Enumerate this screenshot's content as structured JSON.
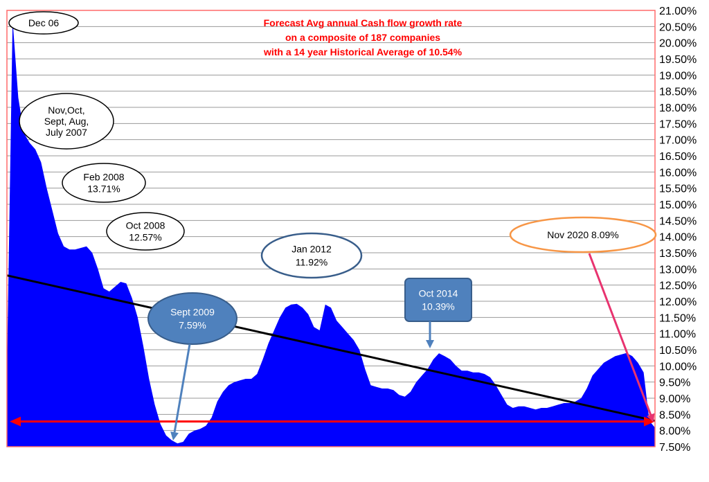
{
  "chart_data": {
    "type": "area",
    "title_lines": [
      "Forecast Avg annual Cash flow growth rate",
      "on a composite of 187 companies",
      "with a 14 year Historical Average of 10.54%"
    ],
    "ylim": [
      7.5,
      21.0
    ],
    "y_ticks": [
      "21.00%",
      "20.50%",
      "20.00%",
      "19.50%",
      "19.00%",
      "18.50%",
      "18.00%",
      "17.50%",
      "17.00%",
      "16.50%",
      "16.00%",
      "15.50%",
      "15.00%",
      "14.50%",
      "14.00%",
      "13.50%",
      "13.00%",
      "12.50%",
      "12.00%",
      "11.50%",
      "11.00%",
      "10.50%",
      "10.00%",
      "9.50%",
      "9.00%",
      "8.50%",
      "8.00%",
      "7.50%"
    ],
    "grid": true,
    "colors": {
      "area": "#0000ff",
      "trend": "#000000",
      "average": "#ff0000",
      "border": "#ff6a6a"
    },
    "series": [
      {
        "values": [
          9.8,
          20.7,
          18.3,
          17.2,
          16.9,
          16.7,
          16.3,
          15.5,
          14.8,
          14.1,
          13.7,
          13.6,
          13.6,
          13.65,
          13.7,
          13.5,
          13.0,
          12.4,
          12.3,
          12.45,
          12.6,
          12.55,
          12.1,
          11.5,
          10.6,
          9.6,
          8.8,
          8.2,
          7.85,
          7.7,
          7.6,
          7.65,
          7.9,
          8.0,
          8.05,
          8.15,
          8.4,
          8.9,
          9.2,
          9.4,
          9.5,
          9.55,
          9.6,
          9.6,
          9.75,
          10.2,
          10.7,
          11.1,
          11.5,
          11.8,
          11.9,
          11.92,
          11.8,
          11.6,
          11.2,
          11.1,
          11.9,
          11.8,
          11.4,
          11.2,
          11.0,
          10.8,
          10.5,
          9.9,
          9.4,
          9.35,
          9.3,
          9.3,
          9.25,
          9.1,
          9.05,
          9.2,
          9.5,
          9.7,
          9.9,
          10.2,
          10.39,
          10.3,
          10.2,
          10.0,
          9.85,
          9.85,
          9.8,
          9.8,
          9.75,
          9.65,
          9.4,
          9.1,
          8.8,
          8.7,
          8.75,
          8.75,
          8.7,
          8.65,
          8.7,
          8.7,
          8.75,
          8.8,
          8.85,
          8.85,
          8.9,
          9.0,
          9.3,
          9.7,
          9.9,
          10.1,
          10.2,
          10.3,
          10.35,
          10.4,
          10.3,
          10.1,
          9.8,
          8.3,
          8.09
        ]
      }
    ],
    "trend_line": {
      "start": 12.8,
      "end": 8.3
    },
    "average_line": {
      "value": 8.28
    },
    "annotations": [
      {
        "id": "dec06",
        "lines": [
          "Dec 06"
        ]
      },
      {
        "id": "nov2007",
        "lines": [
          "Nov,Oct,",
          "Sept, Aug,",
          "July 2007"
        ]
      },
      {
        "id": "feb2008",
        "lines": [
          "Feb 2008",
          "13.71%"
        ]
      },
      {
        "id": "oct2008",
        "lines": [
          "Oct 2008",
          "12.57%"
        ]
      },
      {
        "id": "sep2009",
        "lines": [
          "Sept 2009",
          "7.59%"
        ]
      },
      {
        "id": "jan2012",
        "lines": [
          "Jan 2012",
          "11.92%"
        ]
      },
      {
        "id": "oct2014",
        "lines": [
          "Oct 2014",
          "10.39%"
        ]
      },
      {
        "id": "nov2020",
        "lines": [
          "Nov 2020 8.09%"
        ]
      }
    ]
  }
}
